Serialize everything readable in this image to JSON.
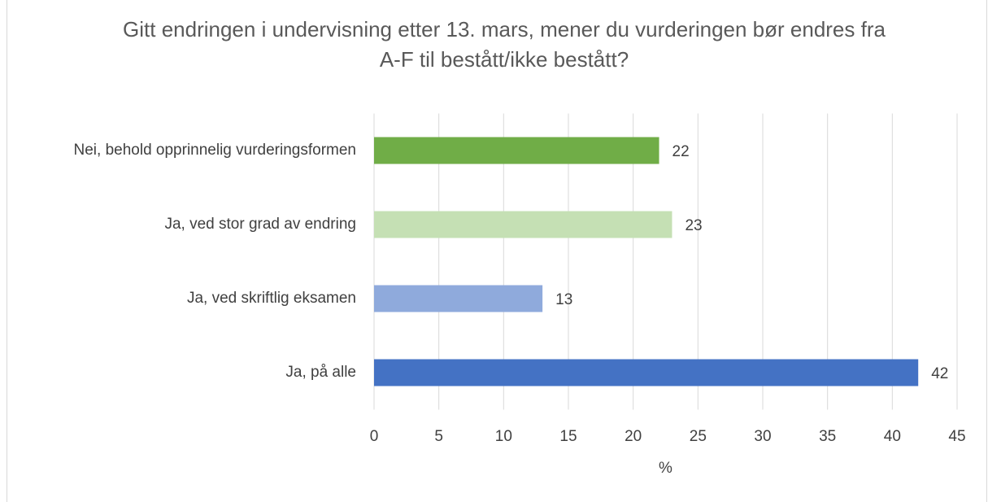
{
  "chart_data": {
    "type": "bar",
    "orientation": "horizontal",
    "title": "Gitt endringen i undervisning etter 13. mars, mener du vurderingen bør endres fra A-F til bestått/ikke bestått?",
    "categories": [
      "Nei, behold opprinnelig vurderingsformen",
      "Ja, ved stor grad av endring",
      "Ja, ved skriftlig eksamen",
      "Ja, på alle"
    ],
    "values": [
      22,
      23,
      13,
      42
    ],
    "colors": [
      "#70ad47",
      "#c5e0b4",
      "#8faadc",
      "#4472c4"
    ],
    "xlabel": "%",
    "xlim": [
      0,
      45
    ],
    "xticks": [
      0,
      5,
      10,
      15,
      20,
      25,
      30,
      35,
      40,
      45
    ],
    "grid": true
  }
}
